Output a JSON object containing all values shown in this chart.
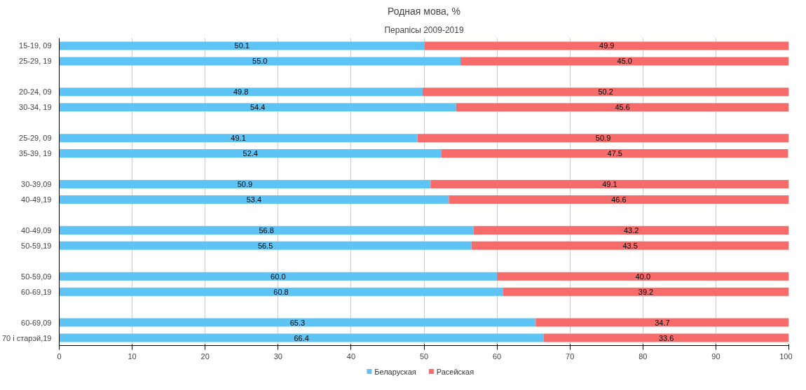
{
  "chart_data": {
    "type": "bar",
    "orientation": "horizontal",
    "stacked": true,
    "title": "Родная мова, %",
    "subtitle": "Перапісы 2009-2019",
    "categories": [
      "15-19, 09",
      "25-29, 19",
      null,
      "20-24, 09",
      "30-34, 19",
      null,
      "25-29, 09",
      "35-39, 19",
      null,
      "30-39,09",
      "40-49,19",
      null,
      "40-49,09",
      "50-59,19",
      null,
      "50-59,09",
      "60-69,19",
      null,
      "60-69,09",
      "70 і старэй,19"
    ],
    "series": [
      {
        "name": "Беларуская",
        "color": "#5ec4f6",
        "values": [
          50.1,
          55.0,
          null,
          49.8,
          54.4,
          null,
          49.1,
          52.4,
          null,
          50.9,
          53.4,
          null,
          56.8,
          56.5,
          null,
          60.0,
          60.8,
          null,
          65.3,
          66.4
        ],
        "value_labels": [
          "50.1",
          "55.0",
          null,
          "49.8",
          "54.4",
          null,
          "49.1",
          "52.4",
          null,
          "50.9",
          "53.4",
          null,
          "56.8",
          "56.5",
          null,
          "60.0",
          "60.8",
          null,
          "65.3",
          "66.4"
        ]
      },
      {
        "name": "Расейская",
        "color": "#f76b6b",
        "values": [
          49.9,
          45.0,
          null,
          50.2,
          45.6,
          null,
          50.9,
          47.5,
          null,
          49.1,
          46.6,
          null,
          43.2,
          43.5,
          null,
          40.0,
          39.2,
          null,
          34.7,
          33.6
        ],
        "value_labels": [
          "49.9",
          "45.0",
          null,
          "50.2",
          "45.6",
          null,
          "50.9",
          "47.5",
          null,
          "49.1",
          "46.6",
          null,
          "43.2",
          "43.5",
          null,
          "40.0",
          "39.2",
          null,
          "34.7",
          "33.6"
        ]
      }
    ],
    "xlim": [
      0,
      100
    ],
    "xticks": [
      0,
      10,
      20,
      30,
      40,
      50,
      60,
      70,
      80,
      90,
      100
    ],
    "grid": "x",
    "legend": "bottom"
  }
}
